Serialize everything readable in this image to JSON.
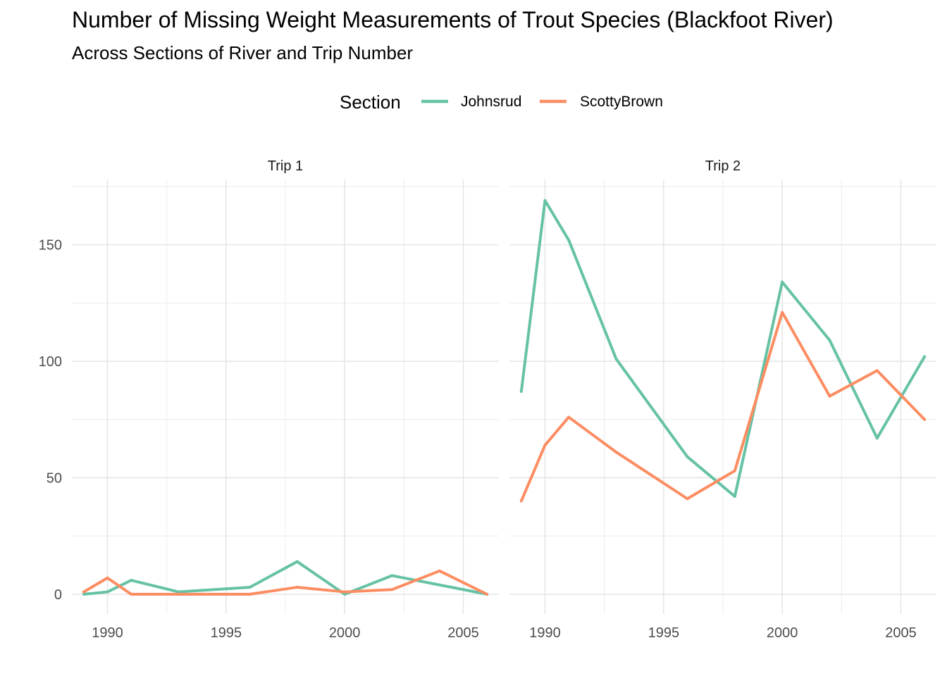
{
  "chart_data": {
    "type": "line",
    "title": "Number of Missing Weight Measurements of Trout Species (Blackfoot River)",
    "subtitle": "Across Sections of River and Trip Number",
    "legend": {
      "title": "Section",
      "position": "top",
      "entries": [
        {
          "name": "Johnsrud",
          "color": "#66c2a5"
        },
        {
          "name": "ScottyBrown",
          "color": "#fc8d62"
        }
      ]
    },
    "xlabel": "",
    "ylabel": "",
    "grid": true,
    "xlim": [
      1988.5,
      2006.5
    ],
    "ylim": [
      -8.5,
      178
    ],
    "x_ticks": [
      1990,
      1995,
      2000,
      2005
    ],
    "y_ticks": [
      0,
      50,
      100,
      150
    ],
    "facets": [
      {
        "label": "Trip 1",
        "series": [
          {
            "name": "Johnsrud",
            "color": "#66c2a5",
            "x": [
              1989,
              1990,
              1991,
              1993,
              1996,
              1998,
              2000,
              2002,
              2006
            ],
            "y": [
              0,
              1,
              6,
              1,
              3,
              14,
              0,
              8,
              0
            ]
          },
          {
            "name": "ScottyBrown",
            "color": "#fc8d62",
            "x": [
              1989,
              1990,
              1991,
              1993,
              1996,
              1998,
              2000,
              2002,
              2004,
              2006
            ],
            "y": [
              1,
              7,
              0,
              0,
              0,
              3,
              1,
              2,
              10,
              0
            ]
          }
        ]
      },
      {
        "label": "Trip 2",
        "series": [
          {
            "name": "Johnsrud",
            "color": "#66c2a5",
            "x": [
              1989,
              1990,
              1991,
              1993,
              1996,
              1998,
              2000,
              2002,
              2004,
              2006
            ],
            "y": [
              87,
              169,
              152,
              101,
              59,
              42,
              134,
              109,
              67,
              102
            ]
          },
          {
            "name": "ScottyBrown",
            "color": "#fc8d62",
            "x": [
              1989,
              1990,
              1991,
              1993,
              1996,
              1998,
              2000,
              2002,
              2004,
              2006
            ],
            "y": [
              40,
              64,
              76,
              61,
              41,
              53,
              121,
              85,
              96,
              75
            ]
          }
        ]
      }
    ]
  }
}
